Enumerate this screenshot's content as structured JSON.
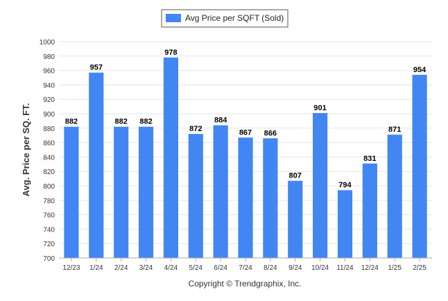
{
  "chart_data": {
    "type": "bar",
    "categories": [
      "12/23",
      "1/24",
      "2/24",
      "3/24",
      "4/24",
      "5/24",
      "6/24",
      "7/24",
      "8/24",
      "9/24",
      "10/24",
      "11/24",
      "12/24",
      "1/25",
      "2/25"
    ],
    "series": [
      {
        "name": "Avg Price per SQFT (Sold)",
        "values": [
          882,
          957,
          882,
          882,
          978,
          872,
          884,
          867,
          866,
          807,
          901,
          794,
          831,
          871,
          954
        ],
        "color": "#4286f4"
      }
    ],
    "title": "",
    "xlabel": "",
    "ylabel": "Avg. Price per SQ. FT.",
    "ylim": [
      700,
      1000
    ],
    "yticks": [
      700,
      720,
      740,
      760,
      780,
      800,
      820,
      840,
      860,
      880,
      900,
      920,
      940,
      960,
      980,
      1000
    ],
    "grid": true,
    "legend_position": "top-center",
    "data_labels": true
  },
  "footer": {
    "copyright": "Copyright © Trendgraphix, Inc."
  },
  "colors": {
    "bar": "#4286f4",
    "grid": "#e6e6e6",
    "axis": "#aaaaaa"
  }
}
